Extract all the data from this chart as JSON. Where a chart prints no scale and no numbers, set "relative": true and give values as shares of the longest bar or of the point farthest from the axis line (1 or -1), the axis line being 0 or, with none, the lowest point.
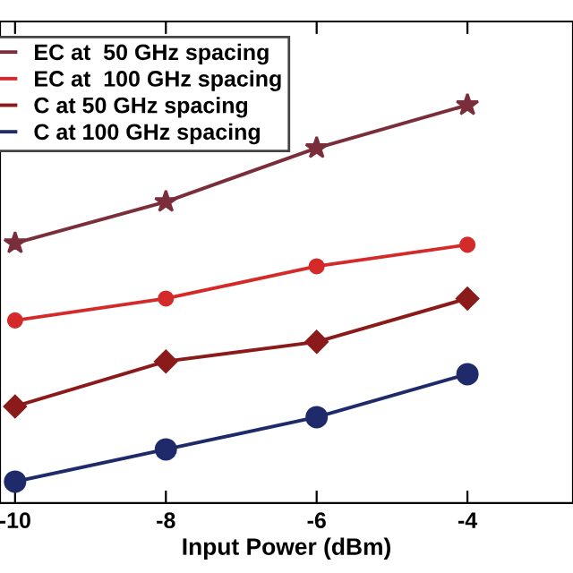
{
  "chart_data": {
    "type": "line",
    "xlabel": "Input Power (dBm)",
    "relative": true,
    "x": [
      -10,
      -8,
      -6,
      -4
    ],
    "xlim": [
      -10.2,
      -2.6
    ],
    "xticks": [
      -10,
      -8,
      -6,
      -4
    ],
    "series": [
      {
        "name": "EC at  50 GHz spacing",
        "color": "#7a2d3a",
        "marker": "star",
        "values": [
          0.653,
          0.757,
          0.892,
          1
        ]
      },
      {
        "name": "EC at  100 GHz spacing",
        "color": "#d42a2a",
        "marker": "circle",
        "values": [
          0.459,
          0.514,
          0.595,
          0.649
        ]
      },
      {
        "name": "C at 50 GHz spacing",
        "color": "#8b1a1a",
        "marker": "diamond",
        "values": [
          0.243,
          0.356,
          0.405,
          0.514
        ]
      },
      {
        "name": "C at 100 GHz spacing",
        "color": "#1f2a6b",
        "marker": "circle",
        "values": [
          0.054,
          0.135,
          0.216,
          0.324
        ]
      }
    ],
    "legend": "top left",
    "grid": false,
    "line_style": "solid"
  }
}
